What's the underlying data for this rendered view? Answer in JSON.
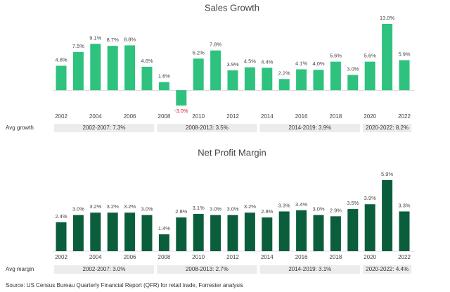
{
  "chart_data": [
    {
      "type": "bar",
      "title": "Sales Growth",
      "categories": [
        "2002",
        null,
        "2004",
        null,
        "2006",
        null,
        "2008",
        null,
        "2010",
        null,
        "2012",
        null,
        "2014",
        null,
        "2016",
        null,
        "2018",
        null,
        "2020",
        null,
        "2022"
      ],
      "values": [
        4.8,
        7.5,
        9.1,
        8.7,
        8.8,
        4.6,
        1.6,
        -3.0,
        6.2,
        7.8,
        3.9,
        4.5,
        4.4,
        2.2,
        4.1,
        4.0,
        5.6,
        3.0,
        5.6,
        13.0,
        5.9
      ],
      "value_labels": [
        "4.8%",
        "7.5%",
        "9.1%",
        "8.7%",
        "8.8%",
        "4.6%",
        "1.6%",
        "-3.0%",
        "6.2%",
        "7.8%",
        "3.9%",
        "4.5%",
        "4.4%",
        "2.2%",
        "4.1%",
        "4.0%",
        "5.6%",
        "3.0%",
        "5.6%",
        "13.0%",
        "5.9%"
      ],
      "color": "#2ec27e",
      "negative_label_color": "#e02020",
      "averages_label": "Avg growth",
      "averages": [
        "2002-2007:  7.3%",
        "2008-2013:  3.5%",
        "2014-2019:  3.9%",
        "2020-2022:  8.2%"
      ]
    },
    {
      "type": "bar",
      "title": "Net Profit Margin",
      "categories": [
        "2002",
        null,
        "2004",
        null,
        "2006",
        null,
        "2008",
        null,
        "2010",
        null,
        "2012",
        null,
        "2014",
        null,
        "2016",
        null,
        "2018",
        null,
        "2020",
        null,
        "2022"
      ],
      "values": [
        2.4,
        3.0,
        3.2,
        3.2,
        3.2,
        3.0,
        1.4,
        2.8,
        3.1,
        3.0,
        3.0,
        3.2,
        2.8,
        3.3,
        3.4,
        3.0,
        2.9,
        3.5,
        3.9,
        5.9,
        3.3
      ],
      "value_labels": [
        "2.4%",
        "3.0%",
        "3.2%",
        "3.2%",
        "3.2%",
        "3.0%",
        "1.4%",
        "2.8%",
        "3.1%",
        "3.0%",
        "3.0%",
        "3.2%",
        "2.8%",
        "3.3%",
        "3.4%",
        "3.0%",
        "2.9%",
        "3.5%",
        "3.9%",
        "5.9%",
        "3.3%"
      ],
      "color": "#0b5e3c",
      "averages_label": "Avg margin",
      "averages": [
        "2002-2007:  3.0%",
        "2008-2013:  2.7%",
        "2014-2019:  3.1%",
        "2020-2022:  4.4%"
      ]
    }
  ],
  "source": "Source: US Census Bureau Quarterly Financial Report (QFR) for retail trade, Forrester analysis"
}
